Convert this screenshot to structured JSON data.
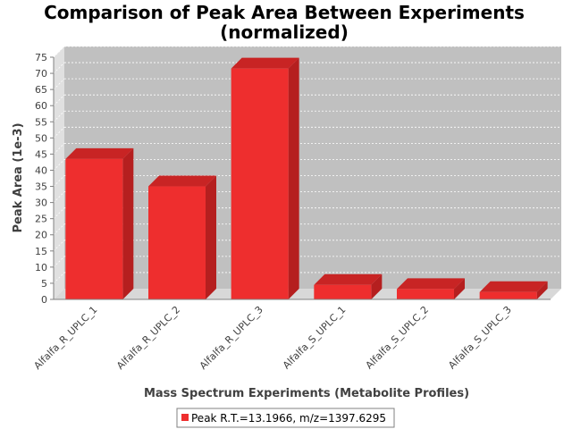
{
  "chart_data": {
    "type": "bar",
    "title_lines": [
      "Comparison of Peak Area Between Experiments",
      "(normalized)"
    ],
    "xlabel": "Mass Spectrum Experiments (Metabolite Profiles)",
    "ylabel": "Peak Area (1e-3)",
    "categories": [
      "Alfalfa_R_UPLC_1",
      "Alfalfa_R_UPLC_2",
      "Alfalfa_R_UPLC_3",
      "Alfalfa_S_UPLC_1",
      "Alfalfa_S_UPLC_2",
      "Alfalfa_S_UPLC_3"
    ],
    "series": [
      {
        "name": "Peak R.T.=13.1966, m/z=1397.6295",
        "values": [
          43.5,
          35.0,
          71.5,
          4.5,
          3.2,
          2.3
        ]
      }
    ],
    "ylim": [
      0,
      75
    ],
    "yticks": [
      0,
      5,
      10,
      15,
      20,
      25,
      30,
      35,
      40,
      45,
      50,
      55,
      60,
      65,
      70,
      75
    ],
    "grid": true,
    "legend_position": "bottom",
    "colors": {
      "bar_front": "#ee2e2e",
      "bar_side": "#b51f1f",
      "bar_top": "#c82424",
      "plot_back": "#c0c0c0",
      "plot_wall": "#e0e0e0",
      "plot_floor": "#d8d8d8",
      "grid": "#ffffff"
    }
  }
}
